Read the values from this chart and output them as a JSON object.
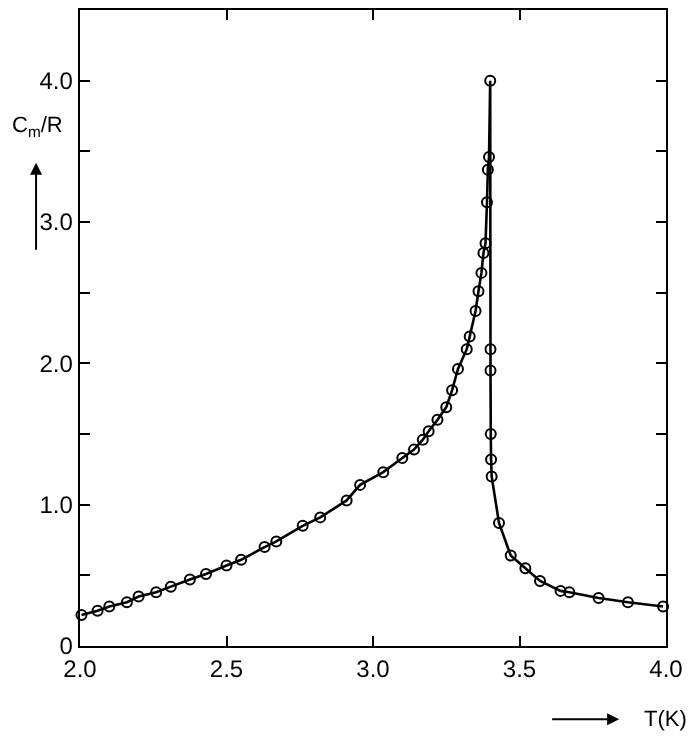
{
  "chart_data": {
    "type": "line",
    "xlabel": "T(K)",
    "ylabel": "C$_{m}$/R",
    "marker": "circle",
    "line_style": "solid",
    "legend": false,
    "xlim": [
      2.0,
      4.0
    ],
    "ylim": [
      0,
      4.5
    ],
    "xticks": [
      {
        "value": 2.0,
        "label": "2.0"
      },
      {
        "value": 2.5,
        "label": "2.5"
      },
      {
        "value": 3.0,
        "label": "3.0"
      },
      {
        "value": 3.5,
        "label": "3.5"
      },
      {
        "value": 4.0,
        "label": "4.0"
      }
    ],
    "yticks": [
      0,
      {
        "value": 0.5,
        "label": null
      },
      {
        "value": 1,
        "label": "1.0"
      },
      {
        "value": 1.5,
        "label": null
      },
      {
        "value": 2,
        "label": "2.0"
      },
      {
        "value": 2.5,
        "label": null
      },
      {
        "value": 3,
        "label": "3.0"
      },
      {
        "value": 3.5,
        "label": null
      },
      {
        "value": 4,
        "label": "4.0"
      }
    ],
    "series": [
      {
        "color": "#000000",
        "x": [
          2.005,
          2.06,
          2.1,
          2.16,
          2.2,
          2.26,
          2.31,
          2.375,
          2.43,
          2.5,
          2.55,
          2.63,
          2.67,
          2.76,
          2.82,
          2.91,
          2.956,
          3.035,
          3.1,
          3.14,
          3.17,
          3.19,
          3.22,
          3.25,
          3.27,
          3.29,
          3.32,
          3.33,
          3.35,
          3.36,
          3.37,
          3.377,
          3.384,
          3.389,
          3.392,
          3.396,
          3.4,
          3.401,
          3.401,
          3.402,
          3.403,
          3.405,
          3.43,
          3.47,
          3.52,
          3.57,
          3.64,
          3.67,
          3.77,
          3.87,
          3.99
        ],
        "values": [
          0.22,
          0.25,
          0.28,
          0.31,
          0.35,
          0.38,
          0.42,
          0.47,
          0.51,
          0.57,
          0.61,
          0.7,
          0.74,
          0.85,
          0.91,
          1.03,
          1.14,
          1.23,
          1.33,
          1.39,
          1.46,
          1.52,
          1.6,
          1.69,
          1.81,
          1.96,
          2.1,
          2.19,
          2.37,
          2.51,
          2.64,
          2.78,
          2.85,
          3.14,
          3.37,
          3.46,
          4.0,
          2.1,
          1.95,
          1.5,
          1.32,
          1.2,
          0.87,
          0.64,
          0.55,
          0.46,
          0.39,
          0.38,
          0.34,
          0.31,
          0.28
        ]
      }
    ]
  }
}
